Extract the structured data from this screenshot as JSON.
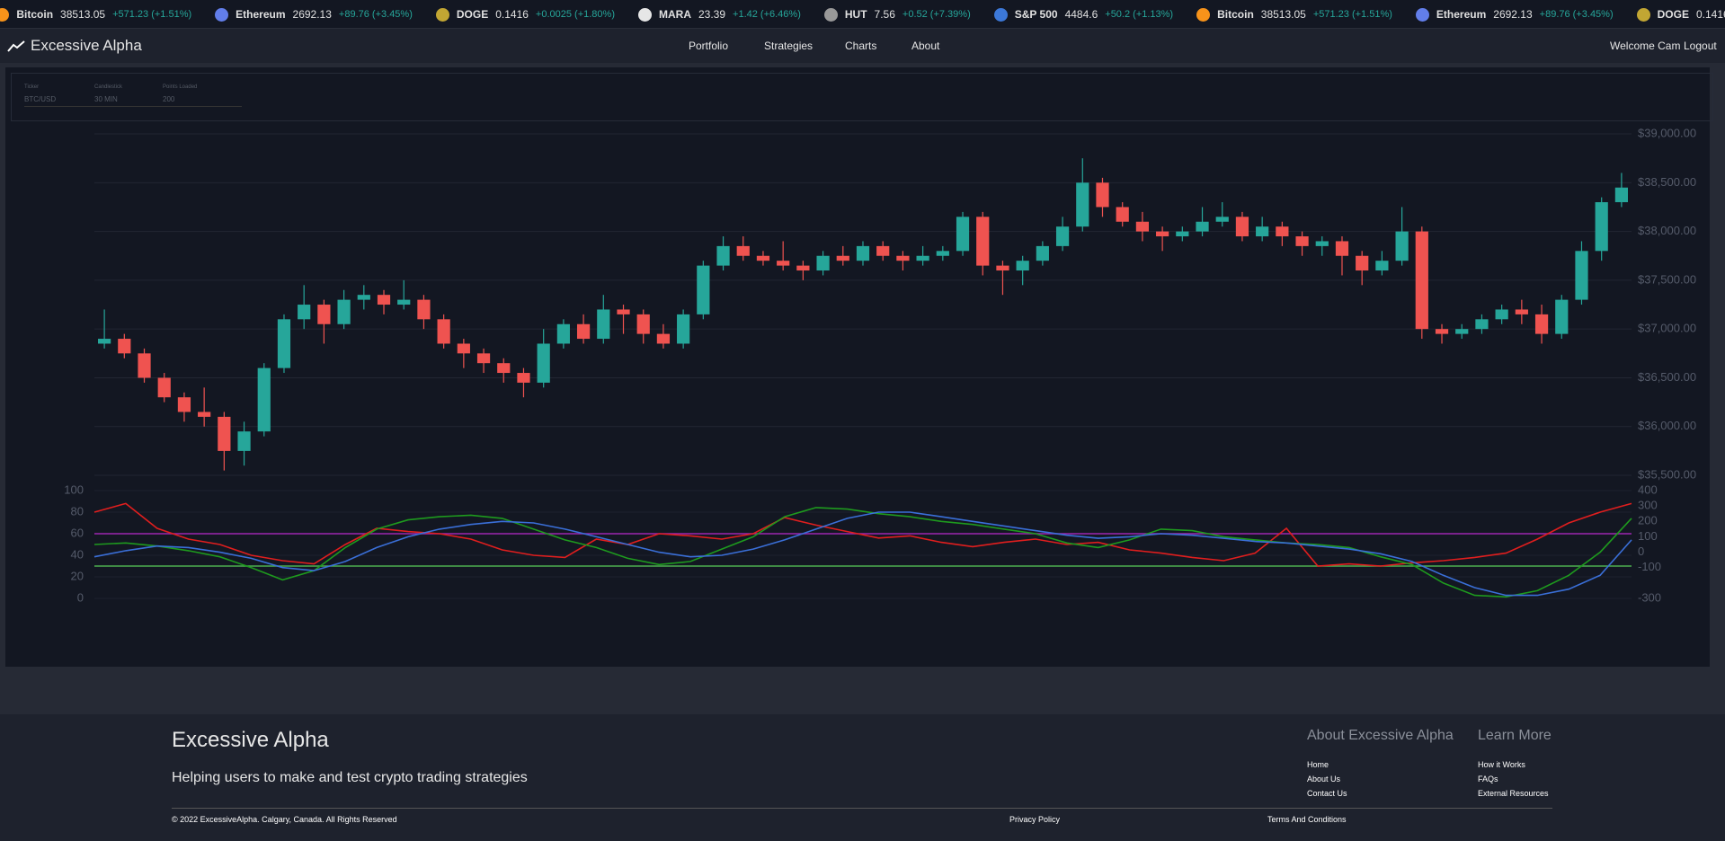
{
  "ticker": [
    {
      "name": "Bitcoin",
      "price": "38513.05",
      "change": "+571.23 (+1.51%)"
    },
    {
      "name": "Ethereum",
      "price": "2692.13",
      "change": "+89.76 (+3.45%)"
    },
    {
      "name": "DOGE",
      "price": "0.1416",
      "change": "+0.0025 (+1.80%)"
    },
    {
      "name": "MARA",
      "price": "23.39",
      "change": "+1.42 (+6.46%)"
    },
    {
      "name": "HUT",
      "price": "7.56",
      "change": "+0.52 (+7.39%)"
    },
    {
      "name": "S&P 500",
      "price": "4484.6",
      "change": "+50.2 (+1.13%)"
    }
  ],
  "header": {
    "brand": "Excessive Alpha",
    "nav": [
      "Portfolio",
      "Strategies",
      "Charts",
      "About"
    ],
    "welcome": "Welcome Cam",
    "logout": "Logout"
  },
  "controls": [
    {
      "label": "Ticker",
      "value": "BTC/USD"
    },
    {
      "label": "Candlestick",
      "value": "30 MIN"
    },
    {
      "label": "Points Loaded",
      "value": "200"
    }
  ],
  "chart_data": [
    {
      "type": "candlestick",
      "up_color": "#26a69a",
      "down_color": "#ef5350",
      "grid": true,
      "ylim": [
        35400,
        39050
      ],
      "yticks": [
        {
          "value": 35500,
          "label": "$35,500.00"
        },
        {
          "value": 36000,
          "label": "$36,000.00"
        },
        {
          "value": 36500,
          "label": "$36,500.00"
        },
        {
          "value": 37000,
          "label": "$37,000.00"
        },
        {
          "value": 37500,
          "label": "$37,500.00"
        },
        {
          "value": 38000,
          "label": "$38,000.00"
        },
        {
          "value": 38500,
          "label": "$38,500.00"
        },
        {
          "value": 39000,
          "label": "$39,000.00"
        }
      ],
      "open": [
        36850,
        36900,
        36750,
        36500,
        36300,
        36150,
        36100,
        35750,
        35950,
        36600,
        37100,
        37250,
        37050,
        37300,
        37350,
        37250,
        37300,
        37100,
        36850,
        36750,
        36650,
        36550,
        36450,
        36850,
        37050,
        36900,
        37200,
        37150,
        36950,
        36850,
        37150,
        37650,
        37850,
        37750,
        37700,
        37650,
        37600,
        37750,
        37700,
        37850,
        37750,
        37700,
        37750,
        37800,
        38150,
        37650,
        37600,
        37700,
        37850,
        38050,
        38500,
        38250,
        38100,
        38000,
        37950,
        38000,
        38100,
        38150,
        37950,
        38050,
        37950,
        37850,
        37900,
        37750,
        37600,
        37700,
        38000,
        37000,
        36950,
        37000,
        37100,
        37200,
        37150,
        36950,
        37300,
        37800,
        38300
      ],
      "high": [
        37200,
        36950,
        36800,
        36550,
        36350,
        36400,
        36150,
        36050,
        36650,
        37150,
        37450,
        37300,
        37400,
        37450,
        37400,
        37500,
        37350,
        37150,
        36900,
        36800,
        36700,
        36600,
        37000,
        37100,
        37150,
        37350,
        37250,
        37200,
        37050,
        37200,
        37700,
        37950,
        37950,
        37800,
        37900,
        37700,
        37800,
        37850,
        37900,
        37900,
        37800,
        37850,
        37850,
        38200,
        38200,
        37700,
        37750,
        37900,
        38150,
        38750,
        38550,
        38300,
        38200,
        38050,
        38050,
        38250,
        38300,
        38200,
        38150,
        38100,
        38000,
        37950,
        37950,
        37800,
        37800,
        38250,
        38050,
        37050,
        37050,
        37150,
        37250,
        37300,
        37250,
        37350,
        37900,
        38350,
        38600
      ],
      "low": [
        36800,
        36700,
        36450,
        36250,
        36050,
        36000,
        35550,
        35600,
        35900,
        36550,
        37000,
        36850,
        37000,
        37200,
        37150,
        37200,
        37000,
        36800,
        36600,
        36550,
        36450,
        36300,
        36400,
        36800,
        36850,
        36850,
        36950,
        36850,
        36800,
        36800,
        37100,
        37600,
        37700,
        37650,
        37600,
        37500,
        37550,
        37650,
        37650,
        37700,
        37600,
        37650,
        37700,
        37750,
        37550,
        37350,
        37450,
        37650,
        37800,
        38000,
        38150,
        38050,
        37900,
        37800,
        37900,
        37950,
        38050,
        37900,
        37900,
        37850,
        37750,
        37750,
        37550,
        37450,
        37550,
        37650,
        36900,
        36850,
        36900,
        36950,
        37050,
        37050,
        36850,
        36900,
        37250,
        37700,
        38250
      ],
      "close": [
        36900,
        36750,
        36500,
        36300,
        36150,
        36100,
        35750,
        35950,
        36600,
        37100,
        37250,
        37050,
        37300,
        37350,
        37250,
        37300,
        37100,
        36850,
        36750,
        36650,
        36550,
        36450,
        36850,
        37050,
        36900,
        37200,
        37150,
        36950,
        36850,
        37150,
        37650,
        37850,
        37750,
        37700,
        37650,
        37600,
        37750,
        37700,
        37850,
        37750,
        37700,
        37750,
        37800,
        38150,
        37650,
        37600,
        37700,
        37850,
        38050,
        38500,
        38250,
        38100,
        38000,
        37950,
        38000,
        38100,
        38150,
        37950,
        38050,
        37950,
        37850,
        37900,
        37750,
        37600,
        37700,
        38000,
        37000,
        36950,
        37000,
        37100,
        37200,
        37150,
        36950,
        37300,
        37800,
        38300,
        38450
      ]
    },
    {
      "type": "line",
      "grid": true,
      "ylim": [
        0,
        100
      ],
      "yticks": [
        0,
        20,
        40,
        60,
        80,
        100
      ],
      "y2lim": [
        -300,
        400
      ],
      "y2ticks": [
        -300,
        -100,
        0,
        100,
        200,
        300,
        400
      ],
      "hlines": [
        {
          "value": 60,
          "color": "#9c27b0"
        },
        {
          "value": 30,
          "color": "#4caf50"
        }
      ],
      "series": [
        {
          "color": "#e01e1e",
          "values": [
            80,
            88,
            65,
            55,
            50,
            40,
            35,
            32,
            50,
            65,
            62,
            60,
            55,
            45,
            40,
            38,
            55,
            50,
            60,
            58,
            55,
            60,
            75,
            68,
            62,
            56,
            58,
            52,
            48,
            52,
            55,
            50,
            52,
            45,
            42,
            38,
            35,
            42,
            65,
            30,
            32,
            30,
            33,
            35,
            38,
            42,
            55,
            70,
            80,
            88
          ]
        },
        {
          "color": "#1e9a1e",
          "axis": "y2",
          "values": [
            50,
            60,
            40,
            10,
            -30,
            -100,
            -180,
            -120,
            30,
            150,
            210,
            230,
            240,
            220,
            150,
            80,
            30,
            -40,
            -80,
            -60,
            20,
            100,
            230,
            290,
            280,
            250,
            230,
            200,
            180,
            150,
            120,
            60,
            30,
            80,
            150,
            140,
            100,
            80,
            60,
            50,
            30,
            -30,
            -80,
            -200,
            -280,
            -290,
            -250,
            -150,
            0,
            220
          ]
        },
        {
          "color": "#3a6fd8",
          "axis": "y2",
          "values": [
            -30,
            10,
            40,
            30,
            0,
            -40,
            -100,
            -120,
            -60,
            30,
            100,
            150,
            180,
            200,
            190,
            150,
            100,
            50,
            0,
            -30,
            -20,
            20,
            80,
            150,
            220,
            260,
            260,
            230,
            200,
            170,
            140,
            110,
            90,
            100,
            120,
            110,
            90,
            70,
            60,
            40,
            20,
            -10,
            -60,
            -150,
            -230,
            -280,
            -280,
            -240,
            -150,
            80
          ]
        }
      ]
    }
  ],
  "footer": {
    "brand": "Excessive Alpha",
    "tagline": "Helping users to make and test crypto trading strategies",
    "columns": [
      {
        "title": "About Excessive Alpha",
        "links": [
          "Home",
          "About Us",
          "Contact Us"
        ]
      },
      {
        "title": "Learn More",
        "links": [
          "How it Works",
          "FAQs",
          "External Resources"
        ]
      }
    ],
    "copyright": "© 2022 ExcessiveAlpha. Calgary, Canada. All Rights Reserved",
    "privacy": "Privacy Policy",
    "terms": "Terms And Conditions"
  }
}
